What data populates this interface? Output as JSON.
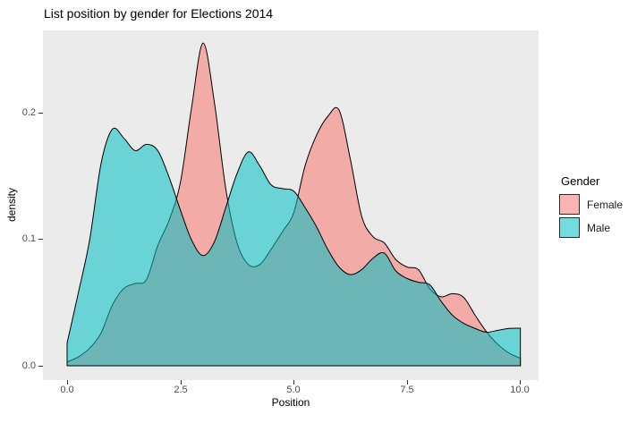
{
  "title": "List position by gender for Elections 2014",
  "axes": {
    "x": {
      "label": "Position",
      "ticks": [
        "0.0",
        "2.5",
        "5.0",
        "7.5",
        "10.0"
      ]
    },
    "y": {
      "label": "density",
      "ticks": [
        "0.0",
        "0.1",
        "0.2"
      ]
    }
  },
  "legend": {
    "title": "Gender",
    "items": [
      {
        "label": "Female",
        "color": "#F8766D"
      },
      {
        "label": "Male",
        "color": "#00BFC4"
      }
    ]
  },
  "colors": {
    "panel": "#EBEBEB",
    "female_fill": "#F8766D",
    "male_fill": "#00BFC4",
    "outline": "#000000",
    "tick_label": "#4D4D4D",
    "fill_opacity": 0.55
  },
  "chart_data": {
    "type": "area",
    "subtype": "overlapping-density",
    "title": "List position by gender for Elections 2014",
    "xlabel": "Position",
    "ylabel": "density",
    "x_ticks": [
      0,
      2.5,
      5,
      7.5,
      10
    ],
    "y_ticks": [
      0,
      0.1,
      0.2
    ],
    "xlim": [
      -0.53,
      10.42
    ],
    "ylim": [
      -0.011,
      0.265
    ],
    "grid": false,
    "legend_position": "right",
    "x": [
      0,
      0.25,
      0.5,
      0.75,
      1,
      1.25,
      1.5,
      1.75,
      2,
      2.25,
      2.5,
      2.75,
      3,
      3.25,
      3.5,
      3.75,
      4,
      4.25,
      4.5,
      4.75,
      5,
      5.25,
      5.5,
      5.75,
      6,
      6.25,
      6.5,
      6.75,
      7,
      7.25,
      7.5,
      7.75,
      8,
      8.25,
      8.5,
      8.75,
      9,
      9.25,
      9.5,
      9.75,
      10
    ],
    "series": [
      {
        "name": "Female",
        "values": [
          0.003,
          0.007,
          0.014,
          0.026,
          0.048,
          0.061,
          0.065,
          0.068,
          0.095,
          0.115,
          0.145,
          0.205,
          0.255,
          0.208,
          0.14,
          0.097,
          0.08,
          0.08,
          0.092,
          0.106,
          0.121,
          0.158,
          0.182,
          0.197,
          0.202,
          0.163,
          0.118,
          0.102,
          0.097,
          0.084,
          0.078,
          0.076,
          0.061,
          0.0545,
          0.057,
          0.054,
          0.04,
          0.027,
          0.017,
          0.01,
          0.006
        ]
      },
      {
        "name": "Male",
        "values": [
          0.018,
          0.058,
          0.1,
          0.16,
          0.187,
          0.18,
          0.17,
          0.175,
          0.17,
          0.149,
          0.123,
          0.099,
          0.087,
          0.098,
          0.125,
          0.152,
          0.169,
          0.158,
          0.143,
          0.14,
          0.138,
          0.125,
          0.11,
          0.092,
          0.078,
          0.072,
          0.076,
          0.085,
          0.089,
          0.075,
          0.069,
          0.066,
          0.064,
          0.051,
          0.04,
          0.0335,
          0.0295,
          0.0265,
          0.028,
          0.0295,
          0.0297
        ]
      }
    ]
  }
}
